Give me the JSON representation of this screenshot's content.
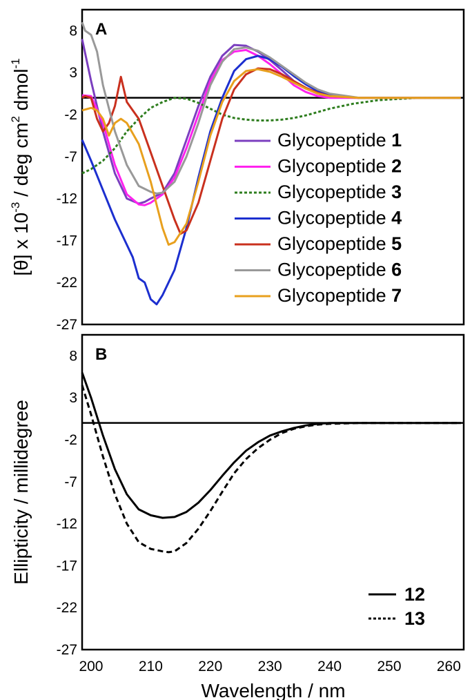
{
  "figure": {
    "xlabel": "Wavelength / nm",
    "x_tick_labels": [
      "200",
      "210",
      "220",
      "230",
      "240",
      "250",
      "260"
    ]
  },
  "chart_data": [
    {
      "type": "line",
      "panel": "A",
      "ylabel": "[θ] x 10-3 / deg cm2 dmol-1",
      "ylabel_parts": {
        "pre": "[θ] x 10",
        "exp1": "-3",
        "mid": " / deg cm",
        "exp2": "2",
        "mid2": " dmol",
        "exp3": "-1"
      },
      "xlim": [
        198.5,
        262.5
      ],
      "ylim": [
        -27,
        10.5
      ],
      "y_ticks": [
        8,
        3,
        -2,
        -7,
        -12,
        -17,
        -22,
        -27
      ],
      "x_ticks": [
        200,
        210,
        220,
        230,
        240,
        250,
        260
      ],
      "zero_line": true,
      "grid": false,
      "legend_position": "center-right",
      "series": [
        {
          "name": "Glycopeptide",
          "number": "1",
          "color": "#7B3FBF",
          "style": "solid",
          "x": [
            198.5,
            200,
            202,
            204,
            206,
            208,
            209,
            210,
            212,
            214,
            216,
            218,
            220,
            222,
            224,
            226,
            228,
            230,
            232,
            234,
            236,
            238,
            240,
            245,
            250,
            255,
            262
          ],
          "y": [
            7,
            2,
            -4,
            -9,
            -12,
            -12.6,
            -12.4,
            -12,
            -11.3,
            -9,
            -5,
            -1,
            2.5,
            5,
            6.3,
            6.2,
            5.5,
            4.5,
            3.3,
            2,
            1.1,
            0.5,
            0.1,
            0,
            0,
            0,
            0
          ]
        },
        {
          "name": "Glycopeptide",
          "number": "2",
          "color": "#FF22EE",
          "style": "solid",
          "x": [
            198.5,
            200,
            202,
            204,
            206,
            208,
            209,
            210,
            212,
            214,
            216,
            218,
            220,
            222,
            224,
            226,
            228,
            230,
            232,
            234,
            236,
            238,
            240,
            245,
            250,
            255,
            262
          ],
          "y": [
            0.3,
            0.2,
            -3,
            -8,
            -11.5,
            -12.7,
            -12.8,
            -12.5,
            -11.5,
            -9.5,
            -6,
            -2,
            2,
            4.5,
            5.5,
            5.7,
            5,
            4,
            2.8,
            1.5,
            0.7,
            0.2,
            0,
            0,
            0,
            0,
            0
          ]
        },
        {
          "name": "Glycopeptide",
          "number": "3",
          "color": "#2E7D1E",
          "style": "dotted",
          "x": [
            198.5,
            200,
            202,
            204,
            206,
            208,
            210,
            212,
            214,
            216,
            218,
            220,
            222,
            224,
            226,
            228,
            230,
            232,
            234,
            236,
            238,
            240,
            242,
            244,
            246,
            248,
            250,
            255,
            262
          ],
          "y": [
            -9,
            -8.5,
            -7.5,
            -6,
            -4,
            -2.5,
            -1.2,
            -0.5,
            0,
            -0.1,
            -0.6,
            -1.3,
            -2,
            -2.4,
            -2.6,
            -2.7,
            -2.7,
            -2.6,
            -2.4,
            -2.1,
            -1.7,
            -1.3,
            -1,
            -0.7,
            -0.5,
            -0.3,
            -0.2,
            0,
            0
          ]
        },
        {
          "name": "Glycopeptide",
          "number": "4",
          "color": "#1C2FCF",
          "style": "solid",
          "x": [
            198.5,
            200,
            202,
            204,
            206,
            207,
            208,
            209,
            210,
            211,
            212,
            214,
            216,
            218,
            220,
            222,
            224,
            226,
            228,
            230,
            232,
            234,
            236,
            238,
            240,
            245,
            250,
            255,
            262
          ],
          "y": [
            -5,
            -7.5,
            -11,
            -14.5,
            -17.5,
            -19,
            -21.5,
            -22,
            -24,
            -24.6,
            -23.5,
            -20.5,
            -15.5,
            -9.5,
            -4,
            0,
            3.2,
            4.6,
            5,
            4.6,
            3.7,
            2.6,
            1.6,
            0.8,
            0.3,
            0,
            0,
            0,
            0
          ]
        },
        {
          "name": "Glycopeptide",
          "number": "5",
          "color": "#C9301E",
          "style": "solid",
          "x": [
            198.5,
            199,
            200,
            201,
            202,
            203,
            204,
            205,
            206,
            207,
            208,
            209,
            210,
            212,
            214,
            215,
            216,
            218,
            220,
            222,
            224,
            226,
            228,
            230,
            232,
            234,
            236,
            238,
            240,
            245,
            250,
            255,
            262
          ],
          "y": [
            0,
            0.2,
            0,
            -2.5,
            -4,
            -3,
            -1,
            2.5,
            -0.5,
            -1.5,
            -2.5,
            -4.5,
            -6.5,
            -10.5,
            -14.5,
            -16.2,
            -15.8,
            -12.5,
            -7.5,
            -2.5,
            1,
            2.8,
            3.5,
            3.4,
            2.8,
            2,
            1.2,
            0.6,
            0.2,
            0,
            0,
            0,
            0
          ]
        },
        {
          "name": "Glycopeptide",
          "number": "6",
          "color": "#999999",
          "style": "solid",
          "x": [
            198.5,
            199,
            200,
            201,
            202,
            204,
            206,
            208,
            210,
            211,
            212,
            214,
            216,
            218,
            220,
            222,
            224,
            226,
            228,
            230,
            232,
            234,
            236,
            238,
            240,
            245,
            250,
            255,
            262
          ],
          "y": [
            9,
            8,
            7.5,
            5.5,
            1.5,
            -4,
            -8,
            -10.5,
            -11.2,
            -11.4,
            -11.3,
            -10,
            -7,
            -3,
            1.5,
            4.3,
            5.8,
            6,
            5.6,
            4.8,
            3.8,
            2.8,
            1.8,
            1,
            0.5,
            0,
            0,
            0,
            0
          ]
        },
        {
          "name": "Glycopeptide",
          "number": "7",
          "color": "#E8A01E",
          "style": "solid",
          "x": [
            198.5,
            199,
            200,
            201,
            202,
            203,
            204,
            205,
            206,
            208,
            210,
            212,
            213,
            214,
            216,
            218,
            220,
            222,
            224,
            226,
            228,
            230,
            232,
            234,
            236,
            238,
            240,
            245,
            250,
            255,
            262
          ],
          "y": [
            -1.5,
            -1.4,
            -1.2,
            -1.5,
            -2.5,
            -4.5,
            -3,
            -2.5,
            -3,
            -5.5,
            -10,
            -15.5,
            -17.5,
            -17.2,
            -15,
            -10,
            -4.5,
            -0.5,
            2,
            3.2,
            3.4,
            3.1,
            2.5,
            1.8,
            1.1,
            0.5,
            0.2,
            0,
            0,
            0,
            0
          ]
        }
      ]
    },
    {
      "type": "line",
      "panel": "B",
      "ylabel": "Ellipticity / millidegree",
      "xlim": [
        198.5,
        262.5
      ],
      "ylim": [
        -27,
        10.5
      ],
      "y_ticks": [
        8,
        3,
        -2,
        -7,
        -12,
        -17,
        -22,
        -27
      ],
      "x_ticks": [
        200,
        210,
        220,
        230,
        240,
        250,
        260
      ],
      "zero_line": true,
      "grid": false,
      "legend_position": "bottom-right",
      "series": [
        {
          "name": "12",
          "color": "#000000",
          "style": "solid",
          "x": [
            198.5,
            200,
            202,
            204,
            206,
            208,
            210,
            212,
            214,
            216,
            218,
            220,
            222,
            224,
            226,
            228,
            230,
            232,
            234,
            236,
            238,
            240,
            245,
            250,
            255,
            262
          ],
          "y": [
            6,
            3,
            -1.5,
            -5.5,
            -8.5,
            -10.3,
            -11,
            -11.3,
            -11.2,
            -10.6,
            -9.5,
            -8,
            -6.3,
            -4.7,
            -3.3,
            -2.3,
            -1.5,
            -1,
            -0.6,
            -0.3,
            -0.1,
            0,
            0,
            0,
            0,
            0
          ]
        },
        {
          "name": "13",
          "color": "#000000",
          "style": "dashed",
          "x": [
            198.5,
            200,
            202,
            204,
            206,
            208,
            210,
            212,
            213,
            214,
            216,
            218,
            220,
            222,
            224,
            226,
            228,
            230,
            232,
            234,
            236,
            238,
            240,
            245,
            250,
            255,
            262
          ],
          "y": [
            4.5,
            1,
            -4,
            -8.5,
            -12,
            -14.2,
            -15,
            -15.3,
            -15.4,
            -15.3,
            -14.3,
            -12.6,
            -10.5,
            -8.2,
            -6,
            -4.3,
            -3,
            -2,
            -1.2,
            -0.7,
            -0.4,
            -0.2,
            -0.1,
            0,
            0,
            0,
            0
          ]
        }
      ]
    }
  ]
}
